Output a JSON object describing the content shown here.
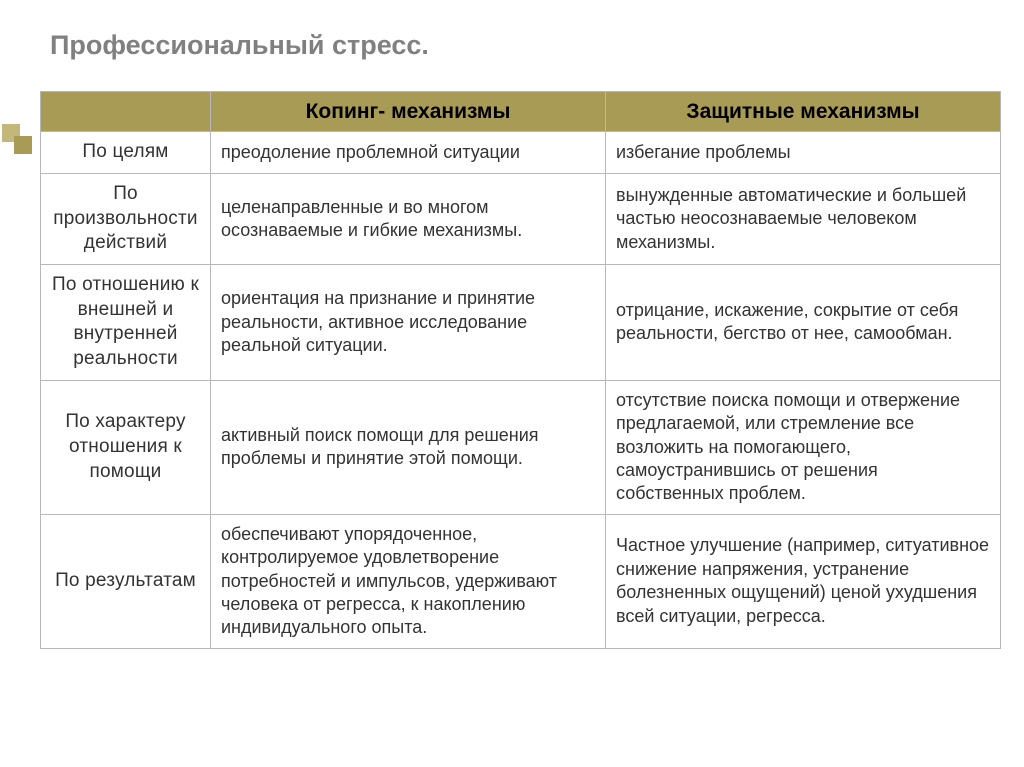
{
  "title": "Профессиональный стресс.",
  "table": {
    "columns": [
      "",
      "Копинг- механизмы",
      "Защитные механизмы"
    ],
    "rows": [
      {
        "head": "По целям",
        "col1": "преодоление проблемной ситуации",
        "col2": "избегание проблемы"
      },
      {
        "head": "По произвольности действий",
        "col1": "целенаправленные и во многом осознаваемые и гибкие механизмы.",
        "col2": "вынужденные автоматические  и большей  частью неосознаваемые человеком механизмы."
      },
      {
        "head": "По отношению к внешней и внутренней реальности",
        "col1": "ориентация на признание и принятие реальности, активное исследование реальной ситуации.",
        "col2": "отрицание, искажение, сокрытие от себя реальности, бегство  от нее, самообман."
      },
      {
        "head": "По характеру отношения к помощи",
        "col1": "активный поиск помощи для решения проблемы и принятие этой помощи.",
        "col2": "отсутствие   поиска помощи   и отвержение предлагаемой, или стремление все возложить на помогающего, самоустранившись  от решения  собственных проблем."
      },
      {
        "head": "По результатам",
        "col1": "обеспечивают упорядоченное, контролируемое удовлетворение потребностей и импульсов, удерживают человека от регресса, к накоплению индивидуального опыта.",
        "col2": "Частное улучшение (например, ситуативное снижение напряжения, устранение болезненных ощущений) ценой ухудшения  всей ситуации, регресса."
      }
    ]
  },
  "style": {
    "header_bg": "#a79b56",
    "ornament_light": "#c3b87a",
    "ornament_dark": "#a79b56",
    "border_color": "#b7b7b7",
    "title_color": "#808080",
    "body_font_size": 18,
    "header_font_size": 21,
    "title_font_size": 27
  }
}
